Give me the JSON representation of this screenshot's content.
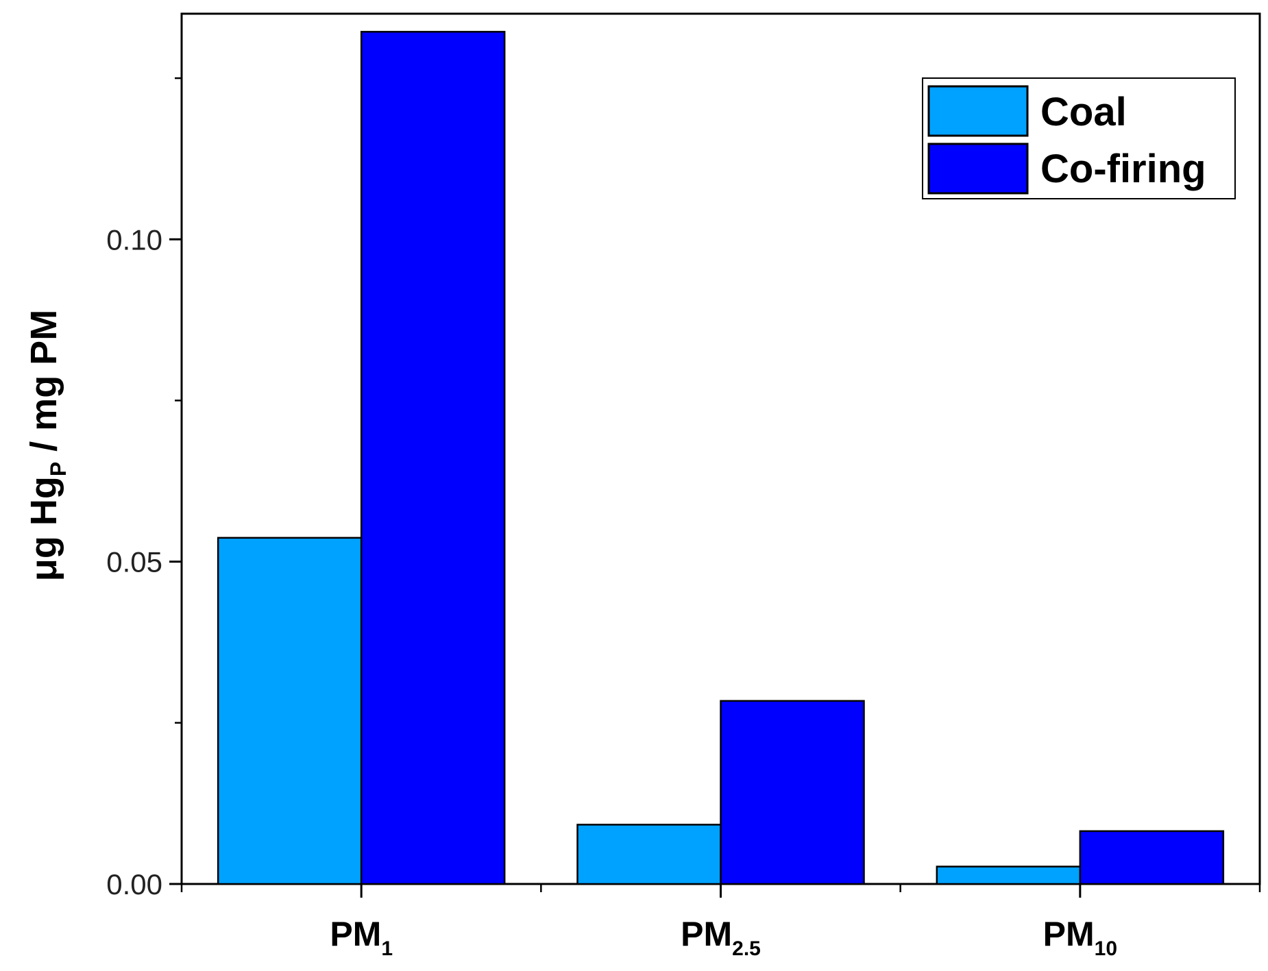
{
  "chart_data": {
    "type": "bar",
    "categories": [
      {
        "main": "PM",
        "sub": "1"
      },
      {
        "main": "PM",
        "sub": "2.5"
      },
      {
        "main": "PM",
        "sub": "10"
      }
    ],
    "series": [
      {
        "name": "Coal",
        "color": "#00a2ff",
        "values": [
          0.0537,
          0.0092,
          0.0027
        ]
      },
      {
        "name": "Co-firing",
        "color": "#0000ff",
        "values": [
          0.1322,
          0.0284,
          0.0082
        ]
      }
    ],
    "ylabel": {
      "main": "μg Hg",
      "sub": "P",
      "rest": " / mg PM"
    },
    "ylim": [
      0,
      0.135
    ],
    "yticks": [
      {
        "value": 0.0,
        "label": "0.00"
      },
      {
        "value": 0.05,
        "label": "0.05"
      },
      {
        "value": 0.1,
        "label": "0.10"
      }
    ],
    "yminor": [
      0.025,
      0.075,
      0.125
    ],
    "grid": false,
    "legend_position": "top-right"
  }
}
